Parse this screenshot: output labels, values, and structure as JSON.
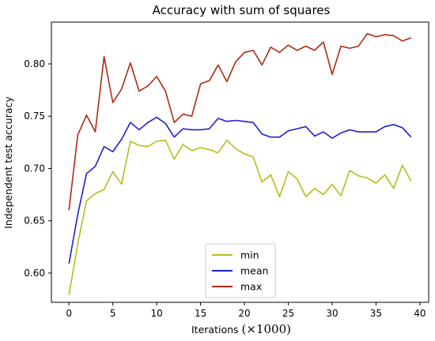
{
  "chart_data": {
    "type": "line",
    "title": "Accuracy with sum of squares",
    "xlabel_main": "Iterations",
    "xlabel_math": "(×1000)",
    "ylabel": "Independent test accuracy",
    "xlim": [
      -2,
      41
    ],
    "ylim": [
      0.572,
      0.84
    ],
    "xticks": [
      0,
      5,
      10,
      15,
      20,
      25,
      30,
      35,
      40
    ],
    "yticks": [
      0.6,
      0.65,
      0.7,
      0.75,
      0.8
    ],
    "ytick_labels": [
      "0.60",
      "0.65",
      "0.70",
      "0.75",
      "0.80"
    ],
    "grid": false,
    "legend_position": "bottom-center",
    "x": [
      0,
      1,
      2,
      3,
      4,
      5,
      6,
      7,
      8,
      9,
      10,
      11,
      12,
      13,
      14,
      15,
      16,
      17,
      18,
      19,
      20,
      21,
      22,
      23,
      24,
      25,
      26,
      27,
      28,
      29,
      30,
      31,
      32,
      33,
      34,
      35,
      36,
      37,
      38,
      39
    ],
    "series": [
      {
        "name": "min",
        "color": "#b5bd1c",
        "values": [
          0.579,
          0.628,
          0.669,
          0.676,
          0.68,
          0.697,
          0.685,
          0.726,
          0.722,
          0.721,
          0.726,
          0.727,
          0.709,
          0.723,
          0.717,
          0.72,
          0.718,
          0.715,
          0.727,
          0.719,
          0.714,
          0.711,
          0.687,
          0.694,
          0.673,
          0.697,
          0.69,
          0.673,
          0.681,
          0.675,
          0.685,
          0.674,
          0.698,
          0.693,
          0.691,
          0.686,
          0.694,
          0.681,
          0.703,
          0.688
        ]
      },
      {
        "name": "mean",
        "color": "#1f1fd2",
        "values": [
          0.609,
          0.656,
          0.695,
          0.702,
          0.721,
          0.716,
          0.728,
          0.744,
          0.737,
          0.744,
          0.749,
          0.743,
          0.73,
          0.738,
          0.737,
          0.737,
          0.738,
          0.748,
          0.745,
          0.746,
          0.745,
          0.744,
          0.733,
          0.73,
          0.73,
          0.736,
          0.738,
          0.74,
          0.731,
          0.735,
          0.729,
          0.734,
          0.737,
          0.735,
          0.735,
          0.735,
          0.74,
          0.742,
          0.739,
          0.73
        ]
      },
      {
        "name": "max",
        "color": "#b02a12",
        "values": [
          0.66,
          0.732,
          0.751,
          0.735,
          0.807,
          0.763,
          0.776,
          0.801,
          0.774,
          0.779,
          0.788,
          0.774,
          0.744,
          0.752,
          0.75,
          0.781,
          0.784,
          0.799,
          0.783,
          0.802,
          0.811,
          0.813,
          0.799,
          0.816,
          0.811,
          0.818,
          0.813,
          0.817,
          0.813,
          0.821,
          0.79,
          0.817,
          0.815,
          0.817,
          0.829,
          0.826,
          0.828,
          0.827,
          0.822,
          0.825
        ]
      }
    ]
  }
}
